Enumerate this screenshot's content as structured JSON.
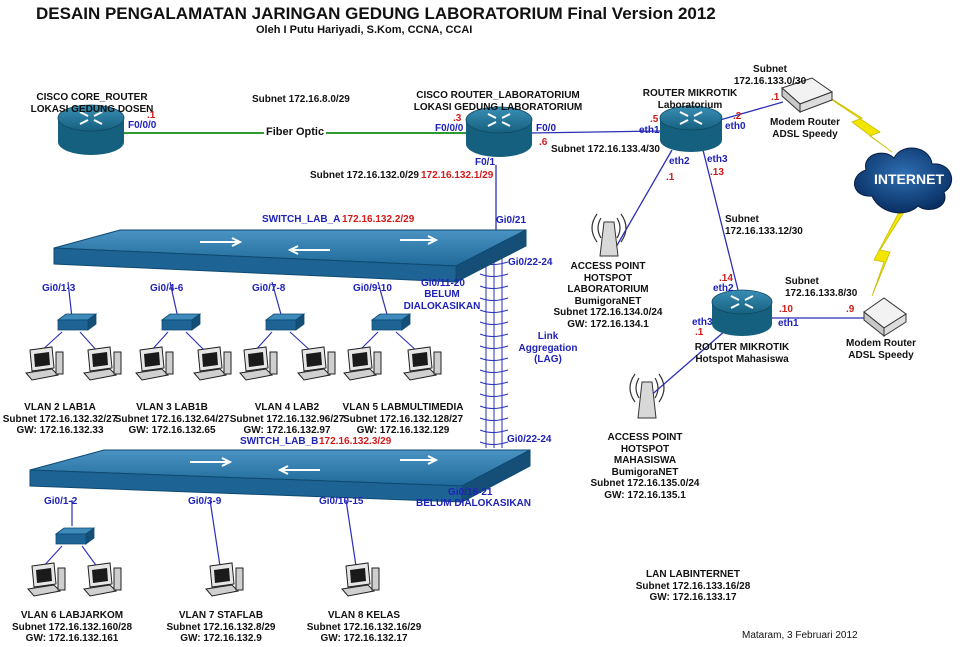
{
  "header": {
    "title": "DESAIN PENGALAMATAN JARINGAN GEDUNG LABORATORIUM Final Version 2012",
    "author": "Oleh I Putu Hariyadi, S.Kom, CCNA, CCAI"
  },
  "core_router": {
    "line1": "CISCO CORE_ROUTER",
    "line2": "LOKASI GEDUNG DOSEN",
    "port": "F0/0/0",
    "ip": ".1"
  },
  "fiber": {
    "label": "Fiber Optic",
    "subnet": "Subnet 172.16.8.0/29"
  },
  "lab_router": {
    "line1": "CISCO ROUTER_LABORATORIUM",
    "line2": "LOKASI GEDUNG LABORATORIUM",
    "port_in": "F0/0/0",
    "ip_in": ".3",
    "port_out": "F0/0",
    "ip_out": ".6",
    "port_down": "F0/1",
    "subnet_down": "Subnet 172.16.132.0/29",
    "ip_down": "172.16.132.1/29"
  },
  "link_r_mk": {
    "subnet": "Subnet 172.16.133.4/30"
  },
  "mikrotik_lab": {
    "line1": "ROUTER MIKROTIK",
    "line2": "Laboratorium",
    "eth0": "eth0",
    "ip_eth0": ".2",
    "eth1": "eth1",
    "ip_eth1": ".5",
    "eth2": "eth2",
    "ip_eth2": ".1",
    "eth3": "eth3",
    "ip_eth3": ".13"
  },
  "modem1": {
    "subnet_line1": "Subnet",
    "subnet_line2": "172.16.133.0/30",
    "ip": ".1",
    "line1": "Modem Router",
    "line2": "ADSL Speedy"
  },
  "internet": {
    "label": "INTERNET"
  },
  "switch_a": {
    "name": "SWITCH_LAB_A",
    "ip": "172.16.132.2/29",
    "uplink": "Gi0/21",
    "lag_port": "Gi0/22-24",
    "unalloc_port": "Gi0/11-20",
    "unalloc_line1": "BELUM",
    "unalloc_line2": "DIALOKASIKAN",
    "ports": [
      "Gi0/1-3",
      "Gi0/4-6",
      "Gi0/7-8",
      "Gi0/9-10"
    ]
  },
  "lag": {
    "line1": "Link",
    "line2": "Aggregation",
    "line3": "(LAG)"
  },
  "vlans_a": [
    {
      "name": "VLAN 2 LAB1A",
      "subnet": "Subnet 172.16.132.32/27",
      "gw": "GW: 172.16.132.33"
    },
    {
      "name": "VLAN 3 LAB1B",
      "subnet": "Subnet 172.16.132.64/27",
      "gw": "GW: 172.16.132.65"
    },
    {
      "name": "VLAN 4 LAB2",
      "subnet": "Subnet 172.16.132.96/27",
      "gw": "GW: 172.16.132.97"
    },
    {
      "name": "VLAN 5 LABMULTIMEDIA",
      "subnet": "Subnet 172.16.132.128/27",
      "gw": "GW: 172.16.132.129"
    }
  ],
  "switch_b": {
    "name": "SWITCH_LAB_B",
    "ip": "172.16.132.3/29",
    "lag_port": "Gi0/22-24",
    "unalloc_port": "Gi0/16-21",
    "unalloc_label": "BELUM DIALOKASIKAN",
    "ports": [
      "Gi0/1-2",
      "Gi0/3-9",
      "Gi0/10-15"
    ]
  },
  "vlans_b": [
    {
      "name": "VLAN 6 LABJARKOM",
      "subnet": "Subnet 172.16.132.160/28",
      "gw": "GW: 172.16.132.161"
    },
    {
      "name": "VLAN 7 STAFLAB",
      "subnet": "Subnet 172.16.132.8/29",
      "gw": "GW: 172.16.132.9"
    },
    {
      "name": "VLAN 8 KELAS",
      "subnet": "Subnet 172.16.132.16/29",
      "gw": "GW: 172.16.132.17"
    }
  ],
  "ap_lab": {
    "line1": "ACCESS POINT",
    "line2": "HOTSPOT",
    "line3": "LABORATORIUM",
    "line4": "BumigoraNET",
    "line5": "Subnet 172.16.134.0/24",
    "line6": "GW: 172.16.134.1"
  },
  "link_mk_mk": {
    "line1": "Subnet",
    "line2": "172.16.133.12/30"
  },
  "mikrotik_hs": {
    "line1": "ROUTER MIKROTIK",
    "line2": "Hotspot Mahasiswa",
    "eth1": "eth1",
    "ip_eth1": ".10",
    "eth2": "eth2",
    "ip_eth2": ".14",
    "eth3": "eth3",
    "ip_eth3": ".1"
  },
  "modem2": {
    "subnet_line1": "Subnet",
    "subnet_line2": "172.16.133.8/30",
    "ip": ".9",
    "line1": "Modem Router",
    "line2": "ADSL Speedy"
  },
  "ap_mhs": {
    "line1": "ACCESS POINT",
    "line2": "HOTSPOT",
    "line3": "MAHASISWA",
    "line4": "BumigoraNET",
    "line5": "Subnet 172.16.135.0/24",
    "line6": "GW: 172.16.135.1"
  },
  "lan_internet": {
    "line1": "LAN LABINTERNET",
    "line2": "Subnet 172.16.133.16/28",
    "line3": "GW: 172.16.133.17"
  },
  "footer": {
    "place_date": "Mataram, 3 Februari 2012"
  },
  "colors": {
    "router": "#1e6f92",
    "switch": "#2b79a8",
    "fiber": "#2f9a2f",
    "link": "#2b2fb8",
    "lightning": "#f2e600",
    "cloud": "#0b3d78",
    "label_blue": "#1f22b8",
    "label_red": "#d21a1a"
  }
}
